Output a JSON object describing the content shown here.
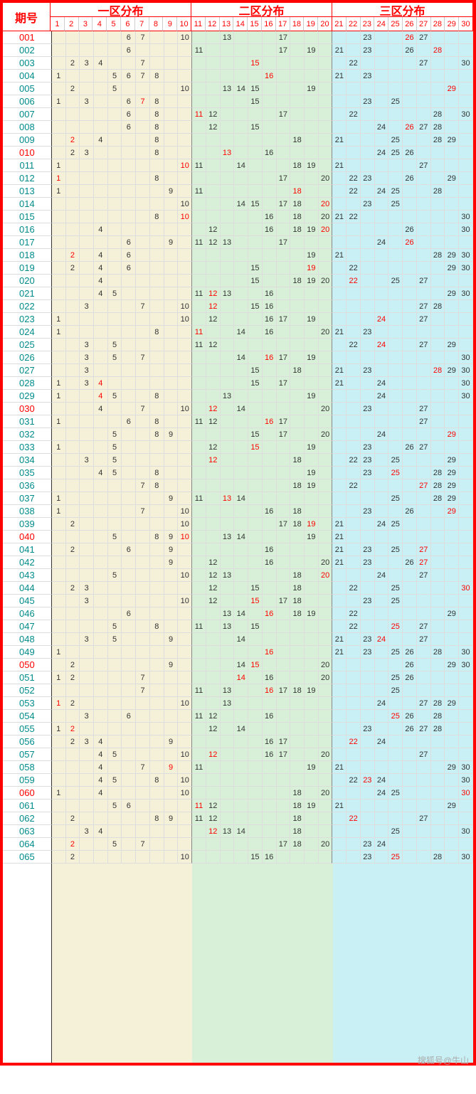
{
  "title": "期号",
  "zones": [
    "一区分布",
    "二区分布",
    "三区分布"
  ],
  "columns": [
    1,
    2,
    3,
    4,
    5,
    6,
    7,
    8,
    9,
    10,
    11,
    12,
    13,
    14,
    15,
    16,
    17,
    18,
    19,
    20,
    21,
    22,
    23,
    24,
    25,
    26,
    27,
    28,
    29,
    30
  ],
  "zone_colors": {
    "z1": "#f5f0d8",
    "z2": "#d8f0d8",
    "z3": "#c8f0f5"
  },
  "border_color": "#ff0000",
  "red_periods": [
    "001",
    "010",
    "030",
    "040",
    "050",
    "060"
  ],
  "watermark": "搜狐号@牛山",
  "rows": [
    {
      "p": "001",
      "v": {
        "6": 0,
        "7": 0,
        "10": 0,
        "13": 0,
        "17": 0,
        "23": 0,
        "26": 1,
        "27": 0
      }
    },
    {
      "p": "002",
      "v": {
        "6": 0,
        "11": 0,
        "17": 0,
        "19": 0,
        "21": 0,
        "23": 0,
        "26": 0,
        "28": 1
      }
    },
    {
      "p": "003",
      "v": {
        "2": 0,
        "3": 0,
        "4": 0,
        "7": 0,
        "15": 1,
        "22": 0,
        "27": 0,
        "30": 0
      }
    },
    {
      "p": "004",
      "v": {
        "1": 0,
        "5": 0,
        "6": 0,
        "7": 0,
        "8": 0,
        "16": 1,
        "21": 0,
        "23": 0
      }
    },
    {
      "p": "005",
      "v": {
        "2": 0,
        "5": 0,
        "10": 0,
        "13": 0,
        "14": 0,
        "15": 0,
        "19": 0,
        "29": 1
      }
    },
    {
      "p": "006",
      "v": {
        "1": 0,
        "3": 0,
        "6": 0,
        "7": 1,
        "8": 0,
        "15": 0,
        "23": 0,
        "25": 0
      }
    },
    {
      "p": "007",
      "v": {
        "6": 0,
        "8": 0,
        "11": 1,
        "12": 0,
        "17": 0,
        "22": 0,
        "28": 0,
        "30": 0
      }
    },
    {
      "p": "008",
      "v": {
        "6": 0,
        "8": 0,
        "12": 0,
        "15": 0,
        "24": 0,
        "26": 1,
        "27": 0,
        "28": 0
      }
    },
    {
      "p": "009",
      "v": {
        "2": 1,
        "4": 0,
        "8": 0,
        "18": 0,
        "21": 0,
        "25": 0,
        "28": 0,
        "29": 0
      }
    },
    {
      "p": "010",
      "v": {
        "2": 0,
        "3": 0,
        "8": 0,
        "13": 1,
        "16": 0,
        "24": 0,
        "25": 0,
        "26": 0
      }
    },
    {
      "p": "011",
      "v": {
        "1": 0,
        "10": 1,
        "11": 0,
        "14": 0,
        "18": 0,
        "19": 0,
        "21": 0,
        "27": 0
      }
    },
    {
      "p": "012",
      "v": {
        "1": 1,
        "8": 0,
        "17": 0,
        "20": 0,
        "22": 0,
        "23": 0,
        "26": 0,
        "29": 0
      }
    },
    {
      "p": "013",
      "v": {
        "1": 0,
        "9": 0,
        "11": 0,
        "18": 1,
        "22": 0,
        "24": 0,
        "25": 0,
        "28": 0
      }
    },
    {
      "p": "014",
      "v": {
        "10": 0,
        "14": 0,
        "15": 0,
        "17": 0,
        "18": 0,
        "20": 1,
        "23": 0,
        "25": 0
      }
    },
    {
      "p": "015",
      "v": {
        "8": 0,
        "10": 1,
        "16": 0,
        "18": 0,
        "20": 0,
        "21": 0,
        "22": 0,
        "30": 0
      }
    },
    {
      "p": "016",
      "v": {
        "4": 0,
        "12": 0,
        "16": 0,
        "18": 0,
        "19": 0,
        "20": 1,
        "26": 0,
        "30": 0
      }
    },
    {
      "p": "017",
      "v": {
        "6": 0,
        "9": 0,
        "11": 0,
        "12": 0,
        "13": 0,
        "17": 0,
        "24": 0,
        "26": 1
      }
    },
    {
      "p": "018",
      "v": {
        "2": 1,
        "4": 0,
        "6": 0,
        "19": 0,
        "21": 0,
        "28": 0,
        "29": 0,
        "30": 0
      }
    },
    {
      "p": "019",
      "v": {
        "2": 0,
        "4": 0,
        "6": 0,
        "15": 0,
        "19": 1,
        "22": 0,
        "29": 0,
        "30": 0
      }
    },
    {
      "p": "020",
      "v": {
        "4": 0,
        "15": 0,
        "18": 0,
        "19": 0,
        "20": 0,
        "22": 1,
        "25": 0,
        "27": 0
      }
    },
    {
      "p": "021",
      "v": {
        "4": 0,
        "5": 0,
        "11": 0,
        "12": 1,
        "13": 0,
        "16": 0,
        "29": 0,
        "30": 0
      }
    },
    {
      "p": "022",
      "v": {
        "3": 0,
        "7": 0,
        "10": 0,
        "12": 1,
        "15": 0,
        "16": 0,
        "27": 0,
        "28": 0
      }
    },
    {
      "p": "023",
      "v": {
        "1": 0,
        "10": 0,
        "12": 0,
        "16": 0,
        "17": 0,
        "19": 0,
        "24": 1,
        "27": 0
      }
    },
    {
      "p": "024",
      "v": {
        "1": 0,
        "8": 0,
        "11": 1,
        "14": 0,
        "16": 0,
        "20": 0,
        "21": 0,
        "23": 0
      }
    },
    {
      "p": "025",
      "v": {
        "3": 0,
        "5": 0,
        "11": 0,
        "12": 0,
        "22": 0,
        "24": 1,
        "27": 0,
        "29": 0
      }
    },
    {
      "p": "026",
      "v": {
        "3": 0,
        "5": 0,
        "7": 0,
        "14": 0,
        "16": 1,
        "17": 0,
        "19": 0,
        "30": 0
      }
    },
    {
      "p": "027",
      "v": {
        "3": 0,
        "15": 0,
        "18": 0,
        "21": 0,
        "23": 0,
        "28": 1,
        "29": 0,
        "30": 0
      }
    },
    {
      "p": "028",
      "v": {
        "1": 0,
        "3": 0,
        "4": 1,
        "15": 0,
        "17": 0,
        "21": 0,
        "24": 0,
        "30": 0
      }
    },
    {
      "p": "029",
      "v": {
        "1": 0,
        "4": 1,
        "5": 0,
        "8": 0,
        "13": 0,
        "19": 0,
        "24": 0,
        "30": 0
      }
    },
    {
      "p": "030",
      "v": {
        "4": 0,
        "7": 0,
        "10": 0,
        "12": 1,
        "14": 0,
        "20": 0,
        "23": 0,
        "27": 0
      }
    },
    {
      "p": "031",
      "v": {
        "1": 0,
        "6": 0,
        "8": 0,
        "11": 0,
        "12": 0,
        "16": 1,
        "17": 0,
        "27": 0
      }
    },
    {
      "p": "032",
      "v": {
        "5": 0,
        "8": 0,
        "9": 0,
        "15": 0,
        "17": 0,
        "20": 0,
        "24": 0,
        "29": 1
      }
    },
    {
      "p": "033",
      "v": {
        "1": 0,
        "5": 0,
        "12": 0,
        "15": 1,
        "19": 0,
        "23": 0,
        "26": 0,
        "27": 0
      }
    },
    {
      "p": "034",
      "v": {
        "3": 0,
        "5": 0,
        "12": 1,
        "18": 0,
        "22": 0,
        "23": 0,
        "25": 0,
        "29": 0
      }
    },
    {
      "p": "035",
      "v": {
        "4": 0,
        "5": 0,
        "8": 0,
        "19": 0,
        "23": 0,
        "25": 1,
        "28": 0,
        "29": 0
      }
    },
    {
      "p": "036",
      "v": {
        "7": 0,
        "8": 0,
        "18": 0,
        "19": 0,
        "22": 0,
        "27": 1,
        "28": 0,
        "29": 0
      }
    },
    {
      "p": "037",
      "v": {
        "1": 0,
        "9": 0,
        "11": 0,
        "13": 1,
        "14": 0,
        "25": 0,
        "28": 0,
        "29": 0
      }
    },
    {
      "p": "038",
      "v": {
        "1": 0,
        "7": 0,
        "10": 0,
        "16": 0,
        "18": 0,
        "23": 0,
        "26": 0,
        "29": 1
      }
    },
    {
      "p": "039",
      "v": {
        "2": 0,
        "10": 0,
        "17": 0,
        "18": 0,
        "19": 1,
        "21": 0,
        "24": 0,
        "25": 0
      }
    },
    {
      "p": "040",
      "v": {
        "5": 0,
        "8": 0,
        "9": 0,
        "10": 1,
        "13": 0,
        "14": 0,
        "19": 0,
        "21": 0
      }
    },
    {
      "p": "041",
      "v": {
        "2": 0,
        "6": 0,
        "9": 0,
        "16": 0,
        "21": 0,
        "23": 0,
        "25": 0,
        "27": 1
      }
    },
    {
      "p": "042",
      "v": {
        "9": 0,
        "12": 0,
        "16": 0,
        "20": 0,
        "21": 0,
        "23": 0,
        "26": 0,
        "27": 1
      }
    },
    {
      "p": "043",
      "v": {
        "5": 0,
        "10": 0,
        "12": 0,
        "13": 0,
        "18": 0,
        "20": 1,
        "24": 0,
        "27": 0
      }
    },
    {
      "p": "044",
      "v": {
        "2": 0,
        "3": 0,
        "12": 0,
        "15": 0,
        "18": 0,
        "22": 0,
        "25": 0,
        "30": 1
      }
    },
    {
      "p": "045",
      "v": {
        "3": 0,
        "10": 0,
        "12": 0,
        "15": 1,
        "17": 0,
        "18": 0,
        "23": 0,
        "25": 0
      }
    },
    {
      "p": "046",
      "v": {
        "6": 0,
        "13": 0,
        "14": 0,
        "16": 1,
        "18": 0,
        "19": 0,
        "22": 0,
        "29": 0
      }
    },
    {
      "p": "047",
      "v": {
        "5": 0,
        "8": 0,
        "11": 0,
        "13": 0,
        "15": 0,
        "22": 0,
        "25": 1,
        "27": 0
      }
    },
    {
      "p": "048",
      "v": {
        "3": 0,
        "5": 0,
        "9": 0,
        "14": 0,
        "21": 0,
        "23": 0,
        "24": 1,
        "27": 0
      }
    },
    {
      "p": "049",
      "v": {
        "1": 0,
        "16": 1,
        "21": 0,
        "23": 0,
        "25": 0,
        "26": 0,
        "28": 0,
        "30": 0
      }
    },
    {
      "p": "050",
      "v": {
        "2": 0,
        "9": 0,
        "14": 0,
        "15": 1,
        "20": 0,
        "26": 0,
        "29": 0,
        "30": 0
      }
    },
    {
      "p": "051",
      "v": {
        "1": 0,
        "2": 0,
        "7": 0,
        "14": 1,
        "16": 0,
        "20": 0,
        "25": 0,
        "26": 0
      }
    },
    {
      "p": "052",
      "v": {
        "7": 0,
        "11": 0,
        "13": 0,
        "16": 1,
        "17": 0,
        "18": 0,
        "19": 0,
        "25": 0
      }
    },
    {
      "p": "053",
      "v": {
        "1": 1,
        "2": 0,
        "10": 0,
        "13": 0,
        "24": 0,
        "27": 0,
        "28": 0,
        "29": 0
      }
    },
    {
      "p": "054",
      "v": {
        "3": 0,
        "6": 0,
        "11": 0,
        "12": 0,
        "16": 0,
        "25": 1,
        "26": 0,
        "28": 0
      }
    },
    {
      "p": "055",
      "v": {
        "1": 0,
        "2": 1,
        "12": 0,
        "14": 0,
        "23": 0,
        "26": 0,
        "27": 0,
        "28": 0
      }
    },
    {
      "p": "056",
      "v": {
        "2": 0,
        "3": 0,
        "4": 0,
        "9": 0,
        "16": 0,
        "17": 0,
        "22": 1,
        "24": 0
      }
    },
    {
      "p": "057",
      "v": {
        "4": 0,
        "5": 0,
        "10": 0,
        "12": 1,
        "16": 0,
        "17": 0,
        "20": 0,
        "27": 0
      }
    },
    {
      "p": "058",
      "v": {
        "4": 0,
        "7": 0,
        "9": 1,
        "11": 0,
        "19": 0,
        "21": 0,
        "29": 0,
        "30": 0
      }
    },
    {
      "p": "059",
      "v": {
        "4": 0,
        "5": 0,
        "8": 0,
        "10": 0,
        "22": 0,
        "23": 1,
        "24": 0,
        "30": 0
      }
    },
    {
      "p": "060",
      "v": {
        "1": 0,
        "4": 0,
        "10": 0,
        "18": 0,
        "20": 0,
        "24": 0,
        "25": 0,
        "30": 1
      }
    },
    {
      "p": "061",
      "v": {
        "5": 0,
        "6": 0,
        "11": 1,
        "12": 0,
        "18": 0,
        "19": 0,
        "21": 0,
        "29": 0
      }
    },
    {
      "p": "062",
      "v": {
        "2": 0,
        "8": 0,
        "9": 0,
        "11": 0,
        "12": 0,
        "18": 0,
        "22": 1,
        "27": 0
      }
    },
    {
      "p": "063",
      "v": {
        "3": 0,
        "4": 0,
        "12": 1,
        "13": 0,
        "14": 0,
        "18": 0,
        "25": 0,
        "30": 0
      }
    },
    {
      "p": "064",
      "v": {
        "2": 1,
        "5": 0,
        "7": 0,
        "17": 0,
        "18": 0,
        "20": 0,
        "23": 0,
        "24": 0
      }
    },
    {
      "p": "065",
      "v": {
        "2": 0,
        "10": 0,
        "15": 0,
        "16": 0,
        "23": 0,
        "25": 1,
        "28": 0,
        "30": 0
      }
    }
  ]
}
